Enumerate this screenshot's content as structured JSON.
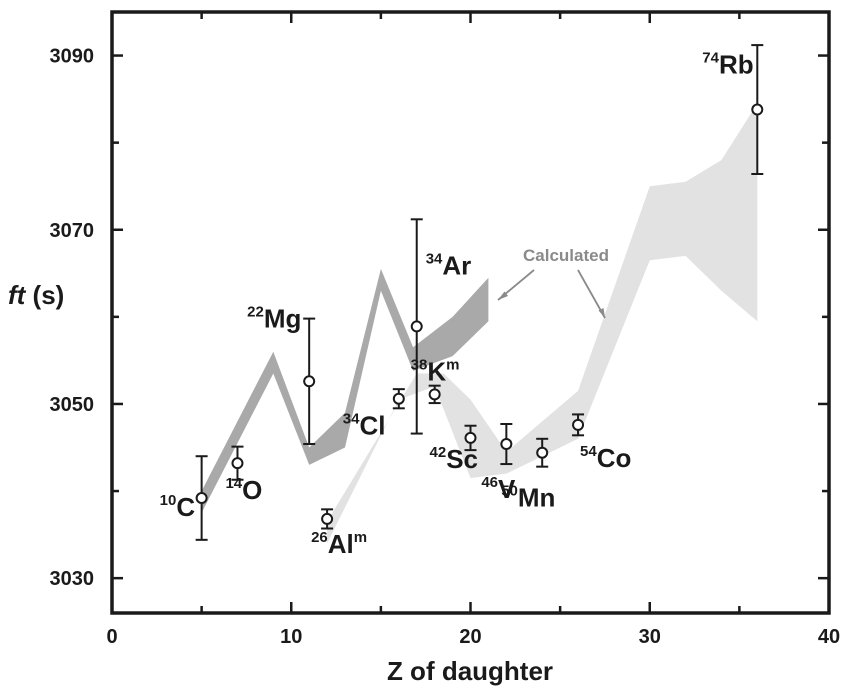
{
  "chart_data": {
    "type": "scatter",
    "xlabel": "Z of daughter",
    "ylabel_italic": "ft",
    "ylabel_unit": " (s)",
    "xlim": [
      0,
      40
    ],
    "ylim": [
      3026,
      3095
    ],
    "xticks": [
      0,
      10,
      20,
      30,
      40
    ],
    "xticks_minor": [
      5,
      15,
      25,
      35
    ],
    "yticks": [
      3030,
      3050,
      3070,
      3090
    ],
    "yticks_minor": [
      3040,
      3060,
      3080
    ],
    "grid": false,
    "annotation": "Calculated",
    "series": [
      {
        "points": [
          {
            "nuclide": "C",
            "mass": "10",
            "iso": "",
            "x": 5,
            "y": 3039.2,
            "err": 4.8
          },
          {
            "nuclide": "O",
            "mass": "14",
            "iso": "",
            "x": 7,
            "y": 3043.2,
            "err": 1.9
          },
          {
            "nuclide": "Mg",
            "mass": "22",
            "iso": "",
            "x": 11,
            "y": 3052.6,
            "err": 7.2
          },
          {
            "nuclide": "Al",
            "mass": "26",
            "iso": "m",
            "x": 12,
            "y": 3036.8,
            "err": 1.1
          },
          {
            "nuclide": "Cl",
            "mass": "34",
            "iso": "",
            "x": 16,
            "y": 3050.6,
            "err": 1.1
          },
          {
            "nuclide": "Ar",
            "mass": "34",
            "iso": "",
            "x": 17,
            "y": 3058.9,
            "err": 12.3
          },
          {
            "nuclide": "K",
            "mass": "38",
            "iso": "m",
            "x": 18,
            "y": 3051.1,
            "err": 1.0
          },
          {
            "nuclide": "Sc",
            "mass": "42",
            "iso": "",
            "x": 20,
            "y": 3046.1,
            "err": 1.4
          },
          {
            "nuclide": "V",
            "mass": "46",
            "iso": "",
            "x": 22,
            "y": 3045.4,
            "err": 2.3
          },
          {
            "nuclide": "Mn",
            "mass": "50",
            "iso": "",
            "x": 24,
            "y": 3044.4,
            "err": 1.6
          },
          {
            "nuclide": "Co",
            "mass": "54",
            "iso": "",
            "x": 26,
            "y": 3047.6,
            "err": 1.2
          },
          {
            "nuclide": "Rb",
            "mass": "74",
            "iso": "",
            "x": 36,
            "y": 3083.8,
            "err": 7.4
          }
        ]
      }
    ],
    "bands": [
      {
        "color": "#a9a9a9",
        "upper": [
          [
            5,
            3040.0
          ],
          [
            9,
            3056.0
          ],
          [
            11,
            3045.0
          ],
          [
            13,
            3049.0
          ],
          [
            15,
            3065.5
          ],
          [
            16.8,
            3056.5
          ],
          [
            19,
            3060.0
          ],
          [
            21,
            3064.5
          ]
        ],
        "lower": [
          [
            5,
            3037.5
          ],
          [
            9,
            3053.5
          ],
          [
            11,
            3043.0
          ],
          [
            13,
            3045.0
          ],
          [
            15,
            3063.0
          ],
          [
            16.8,
            3053.8
          ],
          [
            19,
            3055.5
          ],
          [
            21,
            3059.5
          ]
        ]
      },
      {
        "color": "#e2e2e2",
        "upper": [
          [
            12,
            3036.5
          ],
          [
            17,
            3053.5
          ],
          [
            18.5,
            3053.5
          ],
          [
            20,
            3050.5
          ],
          [
            22,
            3044.5
          ],
          [
            24,
            3048.0
          ],
          [
            26,
            3051.5
          ],
          [
            30,
            3075.0
          ],
          [
            32,
            3075.5
          ],
          [
            34,
            3078.0
          ],
          [
            36,
            3084.5
          ]
        ],
        "lower": [
          [
            12,
            3034.0
          ],
          [
            16,
            3050.5
          ],
          [
            18,
            3052.0
          ],
          [
            20,
            3041.5
          ],
          [
            22,
            3042.0
          ],
          [
            24,
            3044.0
          ],
          [
            26,
            3046.0
          ],
          [
            30,
            3066.5
          ],
          [
            32,
            3067.0
          ],
          [
            34,
            3063.0
          ],
          [
            36,
            3059.5
          ]
        ]
      }
    ]
  }
}
